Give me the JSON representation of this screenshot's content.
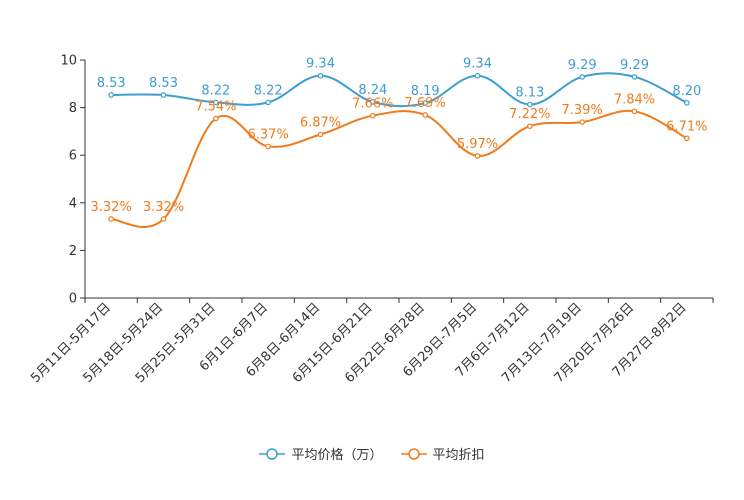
{
  "chart_data": {
    "type": "line",
    "categories": [
      "5月11日-5月17日",
      "5月18日-5月24日",
      "5月25日-5月31日",
      "6月1日-6月7日",
      "6月8日-6月14日",
      "6月15日-6月21日",
      "6月22日-6月28日",
      "6月29日-7月5日",
      "7月6日-7月12日",
      "7月13日-7月19日",
      "7月20日-7月26日",
      "7月27日-8月2日"
    ],
    "ylim": [
      0,
      10
    ],
    "yticks": [
      "0",
      "2",
      "4",
      "6",
      "8",
      "10"
    ],
    "series": [
      {
        "name": "平均价格（万）",
        "color": "#3e9dd1",
        "values": [
          8.53,
          8.53,
          8.22,
          8.22,
          9.34,
          8.24,
          8.19,
          9.34,
          8.13,
          9.29,
          9.29,
          8.2
        ],
        "labels": [
          "8.53",
          "8.53",
          "8.22",
          "8.22",
          "9.34",
          "8.24",
          "8.19",
          "9.34",
          "8.13",
          "9.29",
          "9.29",
          "8.20"
        ]
      },
      {
        "name": "平均折扣",
        "color": "#f07b1c",
        "values": [
          3.32,
          3.32,
          7.54,
          6.37,
          6.87,
          7.66,
          7.69,
          5.97,
          7.22,
          7.39,
          7.84,
          6.71
        ],
        "labels": [
          "3.32%",
          "3.32%",
          "7.54%",
          "6.37%",
          "6.87%",
          "7.66%",
          "7.69%",
          "5.97%",
          "7.22%",
          "7.39%",
          "7.84%",
          "6.71%"
        ]
      }
    ]
  }
}
